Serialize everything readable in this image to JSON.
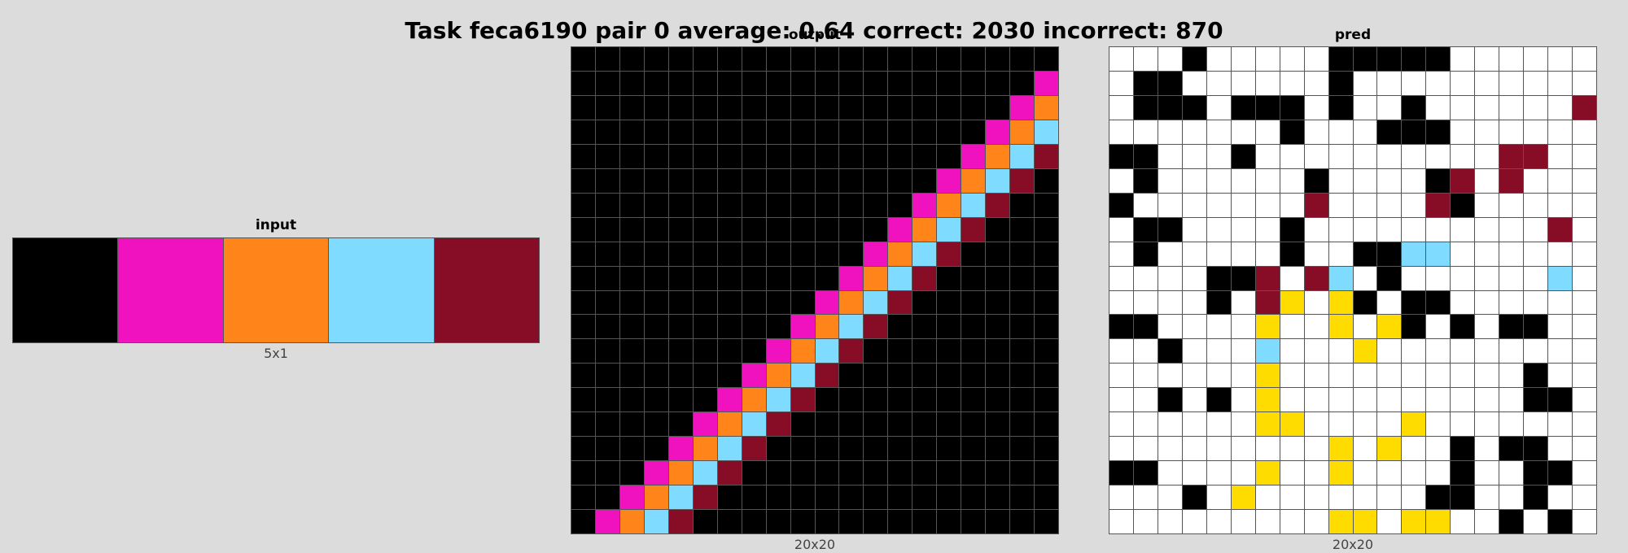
{
  "title": "Task feca6190 pair 0 average: 0.64 correct: 2030 incorrect: 870",
  "palette": {
    "0": "#000000",
    "1": "#0074D9",
    "2": "#FF4136",
    "3": "#2ECC40",
    "4": "#FFDC00",
    "5": "#AAAAAA",
    "6": "#F012BE",
    "7": "#FF851B",
    "8": "#7FDBFF",
    "9": "#870C25",
    "w": "#FFFFFF"
  },
  "panels": {
    "input": {
      "label": "input",
      "size": "5x1",
      "rows": [
        "06789"
      ]
    },
    "output": {
      "label": "output",
      "size": "20x20",
      "rows": [
        "00000000000000000000",
        "00000000000000000006",
        "00000000000000000067",
        "00000000000000000678",
        "00000000000000006789",
        "00000000000000067890",
        "00000000000000678900",
        "00000000000006789000",
        "00000000000067890000",
        "00000000000678900000",
        "00000000006789000000",
        "00000000067890000000",
        "00000000678900000000",
        "00000006789000000000",
        "00000067890000000000",
        "00000678900000000000",
        "00006789000000000000",
        "00067890000000000000",
        "00678900000000000000",
        "06789000000000000000"
      ]
    },
    "pred": {
      "label": "pred",
      "size": "20x20",
      "rows": [
        "www0wwwww00000wwwwww",
        "w00wwwwww0wwwwwwwwww",
        "w000w000w0ww0wwwwww9",
        "wwwwwww0www000wwwwww",
        "00www0wwwwwwwwww99ww",
        "w0wwwwww0wwww09w9www",
        "0wwwwwww9wwww90wwwww",
        "w00wwww0wwwwwwwwww9w",
        "w0wwwww0ww0088wwwwww",
        "wwww009w98w0wwwwww8w",
        "wwww0w94w40w00wwwwww",
        "00wwww4ww4w40w0w00ww",
        "ww0www8www4wwwwwwwww",
        "wwwwww4wwwwwwwwww0ww",
        "ww0w0w4wwwwwwwwww00w",
        "wwwwww44wwww4wwwwwww",
        "wwwwwwwww4w4ww0w00ww",
        "00wwww4ww4wwww0ww00w",
        "www0w4wwwwwww00ww0ww",
        "wwwwwwwww44w44ww0w0w"
      ]
    }
  }
}
